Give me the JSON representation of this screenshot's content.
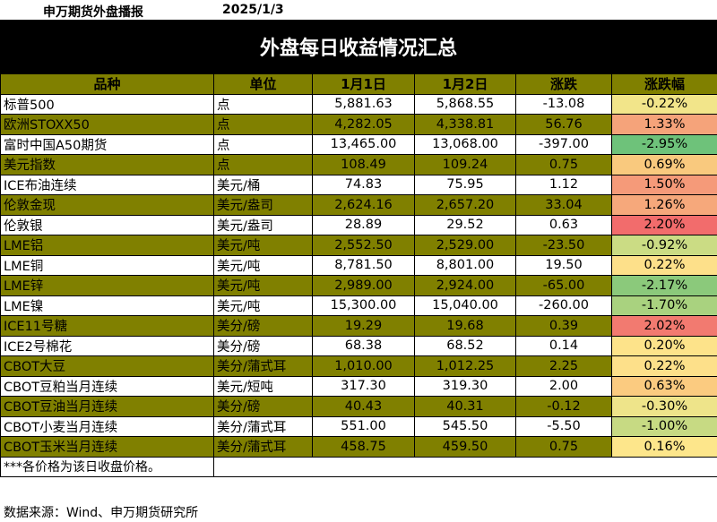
{
  "header": {
    "org": "申万期货外盘播报",
    "date": "2025/1/3"
  },
  "title": "外盘每日收益情况汇总",
  "columns": [
    "品种",
    "单位",
    "1月1日",
    "1月2日",
    "涨跌",
    "涨跌幅"
  ],
  "rows": [
    {
      "name": "标普500",
      "unit": "点",
      "d1": "5,881.63",
      "d2": "5,868.55",
      "chg": "-13.08",
      "pct": "-0.22%",
      "color": "#f2e58a"
    },
    {
      "name": "欧洲STOXX50",
      "unit": "点",
      "d1": "4,282.05",
      "d2": "4,338.81",
      "chg": "56.76",
      "pct": "1.33%",
      "color": "#f5a37a"
    },
    {
      "name": "富时中国A50期货",
      "unit": "点",
      "d1": "13,465.00",
      "d2": "13,068.00",
      "chg": "-397.00",
      "pct": "-2.95%",
      "color": "#6ec27a"
    },
    {
      "name": "美元指数",
      "unit": "点",
      "d1": "108.49",
      "d2": "109.24",
      "chg": "0.75",
      "pct": "0.69%",
      "color": "#f9c97e"
    },
    {
      "name": "ICE布油连续",
      "unit": "美元/桶",
      "d1": "74.83",
      "d2": "75.95",
      "chg": "1.12",
      "pct": "1.50%",
      "color": "#f59a79"
    },
    {
      "name": "伦敦金现",
      "unit": "美元/盎司",
      "d1": "2,624.16",
      "d2": "2,657.20",
      "chg": "33.04",
      "pct": "1.26%",
      "color": "#f6a87b"
    },
    {
      "name": "伦敦银",
      "unit": "美元/盎司",
      "d1": "28.89",
      "d2": "29.52",
      "chg": "0.63",
      "pct": "2.20%",
      "color": "#f26c6c"
    },
    {
      "name": "LME铝",
      "unit": "美元/吨",
      "d1": "2,552.50",
      "d2": "2,529.00",
      "chg": "-23.50",
      "pct": "-0.92%",
      "color": "#cbdc84"
    },
    {
      "name": "LME铜",
      "unit": "美元/吨",
      "d1": "8,781.50",
      "d2": "8,801.00",
      "chg": "19.50",
      "pct": "0.22%",
      "color": "#fde08a"
    },
    {
      "name": "LME锌",
      "unit": "美元/吨",
      "d1": "2,989.00",
      "d2": "2,924.00",
      "chg": "-65.00",
      "pct": "-2.17%",
      "color": "#8bc97b"
    },
    {
      "name": "LME镍",
      "unit": "美元/吨",
      "d1": "15,300.00",
      "d2": "15,040.00",
      "chg": "-260.00",
      "pct": "-1.70%",
      "color": "#a9d27f"
    },
    {
      "name": "ICE11号糖",
      "unit": "美分/磅",
      "d1": "19.29",
      "d2": "19.68",
      "chg": "0.39",
      "pct": "2.02%",
      "color": "#f27a70"
    },
    {
      "name": "ICE2号棉花",
      "unit": "美分/磅",
      "d1": "68.38",
      "d2": "68.52",
      "chg": "0.14",
      "pct": "0.20%",
      "color": "#fde38a"
    },
    {
      "name": "CBOT大豆",
      "unit": "美分/蒲式耳",
      "d1": "1,010.00",
      "d2": "1,012.25",
      "chg": "2.25",
      "pct": "0.22%",
      "color": "#fde08a"
    },
    {
      "name": "CBOT豆粕当月连续",
      "unit": "美元/短吨",
      "d1": "317.30",
      "d2": "319.30",
      "chg": "2.00",
      "pct": "0.63%",
      "color": "#fbcb80"
    },
    {
      "name": "CBOT豆油当月连续",
      "unit": "美分/磅",
      "d1": "40.43",
      "d2": "40.31",
      "chg": "-0.12",
      "pct": "-0.30%",
      "color": "#eee48a"
    },
    {
      "name": "CBOT小麦当月连续",
      "unit": "美分/蒲式耳",
      "d1": "551.00",
      "d2": "545.50",
      "chg": "-5.50",
      "pct": "-1.00%",
      "color": "#c7da83"
    },
    {
      "name": "CBOT玉米当月连续",
      "unit": "美分/蒲式耳",
      "d1": "458.75",
      "d2": "459.50",
      "chg": "0.75",
      "pct": "0.16%",
      "color": "#fde68b"
    }
  ],
  "footnote": "***各价格为该日收盘价格。",
  "source": "数据来源：Wind、申万期货研究所"
}
